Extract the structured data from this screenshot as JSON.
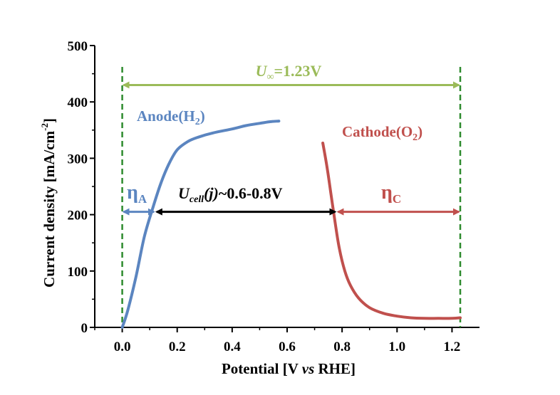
{
  "chart_data": {
    "type": "line",
    "title": "",
    "xlabel": {
      "pre": "Potential [V ",
      "ital": "vs",
      "post": " RHE]"
    },
    "ylabel": {
      "main": "Current density [mA/cm",
      "sup": "-2",
      "close": "]"
    },
    "xlim": [
      -0.1,
      1.3
    ],
    "ylim": [
      0,
      500
    ],
    "xticks": [
      0.0,
      0.2,
      0.4,
      0.6,
      0.8,
      1.0,
      1.2
    ],
    "xtick_labels": [
      "0.0",
      "0.2",
      "0.4",
      "0.6",
      "0.8",
      "1.0",
      "1.2"
    ],
    "yticks": [
      0,
      100,
      200,
      300,
      400,
      500
    ],
    "ytick_labels": [
      "0",
      "100",
      "200",
      "300",
      "400",
      "500"
    ],
    "series": [
      {
        "name": "Anode",
        "label": {
          "main": "Anode(H",
          "sub": "2",
          "close": ")"
        },
        "color": "#5b85c0",
        "x": [
          0.0,
          0.02,
          0.05,
          0.08,
          0.11,
          0.14,
          0.17,
          0.2,
          0.24,
          0.28,
          0.33,
          0.4,
          0.45,
          0.5,
          0.54,
          0.57
        ],
        "y": [
          0,
          30,
          90,
          160,
          210,
          255,
          290,
          315,
          330,
          338,
          345,
          352,
          358,
          362,
          365,
          366
        ]
      },
      {
        "name": "Cathode",
        "label": {
          "main": "Cathode(O",
          "sub": "2",
          "close": ")"
        },
        "color": "#c0504d",
        "x": [
          0.73,
          0.745,
          0.76,
          0.775,
          0.79,
          0.81,
          0.83,
          0.86,
          0.9,
          0.95,
          1.0,
          1.05,
          1.1,
          1.15,
          1.2,
          1.23
        ],
        "y": [
          327,
          285,
          235,
          185,
          140,
          100,
          75,
          52,
          35,
          25,
          20,
          17,
          16,
          16,
          16,
          17
        ]
      }
    ],
    "reference_lines": [
      {
        "name": "start",
        "x": 0.0,
        "color": "#2e8b2e"
      },
      {
        "name": "end",
        "x": 1.23,
        "color": "#2e8b2e"
      }
    ],
    "annotations": {
      "u_inf": {
        "pre": "U",
        "sub": "∞",
        "post": "=1.23V",
        "y": 430,
        "x1": 0.0,
        "x2": 1.23,
        "color": "#9bbb59"
      },
      "eta_a": {
        "main": "η",
        "sub": "A",
        "y": 205,
        "x1": 0.0,
        "x2": 0.12,
        "color": "#5b85c0"
      },
      "u_cell": {
        "pre": "U",
        "sub": "cell",
        "ital": "(j)",
        "post": "~0.6-0.8V",
        "y": 205,
        "x1": 0.12,
        "x2": 0.78,
        "color": "#000000"
      },
      "eta_c": {
        "main": "η",
        "sub": "C",
        "y": 205,
        "x1": 0.78,
        "x2": 1.23,
        "color": "#c0504d"
      }
    }
  }
}
